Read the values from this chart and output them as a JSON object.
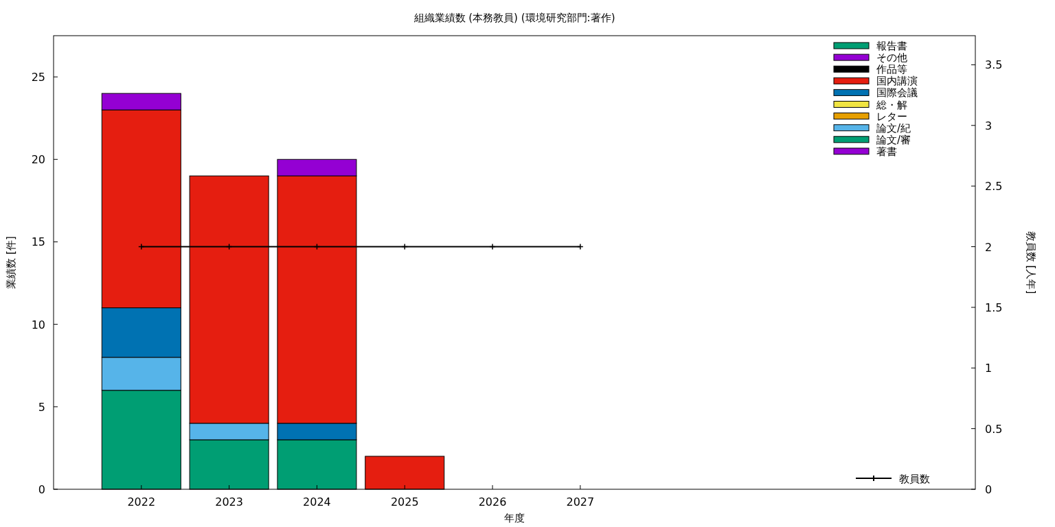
{
  "chart_data": {
    "type": "bar",
    "title": "組織業績数 (本務教員) (環境研究部門:著作)",
    "xlabel": "年度",
    "ylabel": "業績数 [件]",
    "y2label": "教員数 [人年]",
    "x": [
      2022,
      2023,
      2024,
      2025,
      2026,
      2027
    ],
    "xlim": [
      2021,
      2031.5
    ],
    "xticks": [
      2022,
      2023,
      2024,
      2025,
      2026,
      2027
    ],
    "ylim": [
      0,
      27.5
    ],
    "yticks": [
      0,
      5,
      10,
      15,
      20,
      25
    ],
    "y2lim": [
      0,
      3.74
    ],
    "y2ticks": [
      0,
      0.5,
      1,
      1.5,
      2,
      2.5,
      3,
      3.5
    ],
    "stacked": true,
    "legend": "top right",
    "grid": false,
    "series": [
      {
        "name": "著書",
        "color": "#9400d3",
        "values": [
          0,
          0,
          0,
          0,
          0,
          0
        ]
      },
      {
        "name": "論文/審",
        "color": "#009e73",
        "values": [
          6,
          3,
          3,
          0,
          0,
          0
        ]
      },
      {
        "name": "論文/紀",
        "color": "#56b4e9",
        "values": [
          2,
          1,
          0,
          0,
          0,
          0
        ]
      },
      {
        "name": "レター",
        "color": "#e69f00",
        "values": [
          0,
          0,
          0,
          0,
          0,
          0
        ]
      },
      {
        "name": "総・解",
        "color": "#f0e442",
        "values": [
          0,
          0,
          0,
          0,
          0,
          0
        ]
      },
      {
        "name": "国際会議",
        "color": "#0072b2",
        "values": [
          3,
          0,
          1,
          0,
          0,
          0
        ]
      },
      {
        "name": "国内講演",
        "color": "#e51e10",
        "values": [
          12,
          15,
          15,
          2,
          0,
          0
        ]
      },
      {
        "name": "作品等",
        "color": "#000000",
        "values": [
          0,
          0,
          0,
          0,
          0,
          0
        ]
      },
      {
        "name": "その他",
        "color": "#9400d3",
        "values": [
          1,
          0,
          1,
          0,
          0,
          0
        ]
      },
      {
        "name": "報告書",
        "color": "#009e73",
        "values": [
          0,
          0,
          0,
          0,
          0,
          0
        ]
      },
      {
        "name": "教員数",
        "type": "line",
        "axis": "y2",
        "marker": "cross",
        "color": "#000000",
        "values": [
          2,
          2,
          2,
          2,
          2,
          2
        ]
      }
    ]
  }
}
